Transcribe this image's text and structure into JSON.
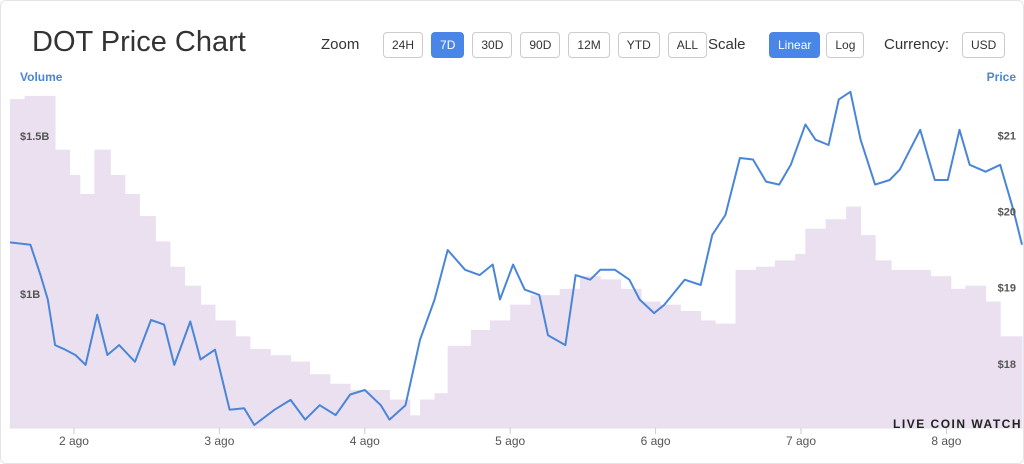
{
  "header": {
    "title": "DOT Price Chart",
    "zoom_label": "Zoom",
    "zoom_options": [
      {
        "label": "24H",
        "selected": false
      },
      {
        "label": "7D",
        "selected": true
      },
      {
        "label": "30D",
        "selected": false
      },
      {
        "label": "90D",
        "selected": false
      },
      {
        "label": "12M",
        "selected": false
      },
      {
        "label": "YTD",
        "selected": false
      },
      {
        "label": "ALL",
        "selected": false
      }
    ],
    "scale_label": "Scale",
    "scale_options": [
      {
        "label": "Linear",
        "selected": true
      },
      {
        "label": "Log",
        "selected": false
      }
    ],
    "currency_label": "Currency:",
    "currency_options": [
      {
        "label": "USD",
        "selected": false
      }
    ]
  },
  "chart_data": {
    "type": "line",
    "y_label": "Volume",
    "y2_label": "Price",
    "watermark": "LIVE COIN WATCH",
    "xlim": [
      1.56,
      8.52
    ],
    "xticks": [
      {
        "value": 2,
        "label": "2 ago"
      },
      {
        "value": 3,
        "label": "3 ago"
      },
      {
        "value": 4,
        "label": "4 ago"
      },
      {
        "value": 5,
        "label": "5 ago"
      },
      {
        "value": 6,
        "label": "6 ago"
      },
      {
        "value": 7,
        "label": "7 ago"
      },
      {
        "value": 8,
        "label": "8 ago"
      }
    ],
    "ylim": [
      580000000,
      1655000000
    ],
    "yticks": [
      {
        "value": 1000000000,
        "label": "$1B"
      },
      {
        "value": 1500000000,
        "label": "$1.5B"
      }
    ],
    "y2lim": [
      17.17,
      21.64
    ],
    "y2ticks": [
      {
        "value": 18,
        "label": "$18"
      },
      {
        "value": 19,
        "label": "$19"
      },
      {
        "value": 20,
        "label": "$20"
      },
      {
        "value": 21,
        "label": "$21"
      }
    ],
    "series": [
      {
        "name": "Volume",
        "kind": "area",
        "color": "#ebe0f0",
        "axis": "y",
        "x": [
          1.56,
          1.66,
          1.87,
          1.97,
          2.04,
          2.14,
          2.25,
          2.35,
          2.45,
          2.56,
          2.66,
          2.76,
          2.87,
          2.97,
          3.11,
          3.21,
          3.35,
          3.49,
          3.62,
          3.76,
          3.9,
          4.04,
          4.17,
          4.31,
          4.38,
          4.48,
          4.57,
          4.73,
          4.86,
          5.0,
          5.14,
          5.34,
          5.48,
          5.62,
          5.76,
          5.9,
          6.03,
          6.17,
          6.31,
          6.41,
          6.55,
          6.69,
          6.82,
          6.96,
          7.03,
          7.17,
          7.31,
          7.41,
          7.51,
          7.62,
          7.75,
          7.89,
          8.03,
          8.13,
          8.27,
          8.37
        ],
        "values": [
          1620000000,
          1630000000,
          1460000000,
          1380000000,
          1320000000,
          1460000000,
          1380000000,
          1320000000,
          1250000000,
          1170000000,
          1090000000,
          1030000000,
          970000000,
          920000000,
          870000000,
          830000000,
          810000000,
          790000000,
          750000000,
          720000000,
          700000000,
          700000000,
          670000000,
          620000000,
          670000000,
          690000000,
          840000000,
          890000000,
          920000000,
          970000000,
          1000000000,
          1020000000,
          1060000000,
          1050000000,
          1020000000,
          980000000,
          970000000,
          950000000,
          920000000,
          910000000,
          1080000000,
          1090000000,
          1110000000,
          1130000000,
          1210000000,
          1240000000,
          1280000000,
          1190000000,
          1110000000,
          1080000000,
          1080000000,
          1060000000,
          1020000000,
          1030000000,
          980000000,
          870000000
        ]
      },
      {
        "name": "Price",
        "kind": "line",
        "color": "#4a86d8",
        "axis": "y2",
        "x": [
          1.56,
          1.7,
          1.77,
          1.82,
          1.87,
          1.94,
          2.01,
          2.08,
          2.16,
          2.23,
          2.31,
          2.42,
          2.53,
          2.62,
          2.69,
          2.8,
          2.87,
          2.97,
          3.07,
          3.17,
          3.24,
          3.38,
          3.49,
          3.59,
          3.69,
          3.8,
          3.9,
          4.0,
          4.11,
          4.17,
          4.28,
          4.38,
          4.48,
          4.57,
          4.69,
          4.79,
          4.88,
          4.93,
          5.02,
          5.1,
          5.2,
          5.26,
          5.38,
          5.45,
          5.55,
          5.62,
          5.72,
          5.82,
          5.89,
          5.99,
          6.06,
          6.2,
          6.31,
          6.39,
          6.48,
          6.58,
          6.67,
          6.76,
          6.85,
          6.93,
          7.03,
          7.1,
          7.19,
          7.26,
          7.34,
          7.41,
          7.51,
          7.61,
          7.68,
          7.82,
          7.92,
          8.01,
          8.09,
          8.16,
          8.27,
          8.37,
          8.46,
          8.52
        ],
        "values": [
          19.61,
          19.58,
          19.18,
          18.86,
          18.26,
          18.2,
          18.13,
          18.0,
          18.66,
          18.13,
          18.26,
          18.04,
          18.59,
          18.53,
          18.0,
          18.57,
          18.07,
          18.2,
          17.41,
          17.43,
          17.21,
          17.41,
          17.54,
          17.28,
          17.47,
          17.34,
          17.61,
          17.67,
          17.47,
          17.28,
          17.47,
          18.33,
          18.86,
          19.51,
          19.25,
          19.18,
          19.32,
          18.86,
          19.32,
          18.99,
          18.92,
          18.39,
          18.26,
          19.18,
          19.12,
          19.25,
          19.25,
          19.12,
          18.86,
          18.68,
          18.79,
          19.12,
          19.05,
          19.71,
          19.97,
          20.72,
          20.7,
          20.41,
          20.37,
          20.63,
          21.16,
          20.96,
          20.89,
          21.49,
          21.59,
          20.96,
          20.37,
          20.43,
          20.57,
          21.09,
          20.43,
          20.43,
          21.09,
          20.63,
          20.54,
          20.63,
          20.04,
          19.58
        ]
      }
    ]
  }
}
